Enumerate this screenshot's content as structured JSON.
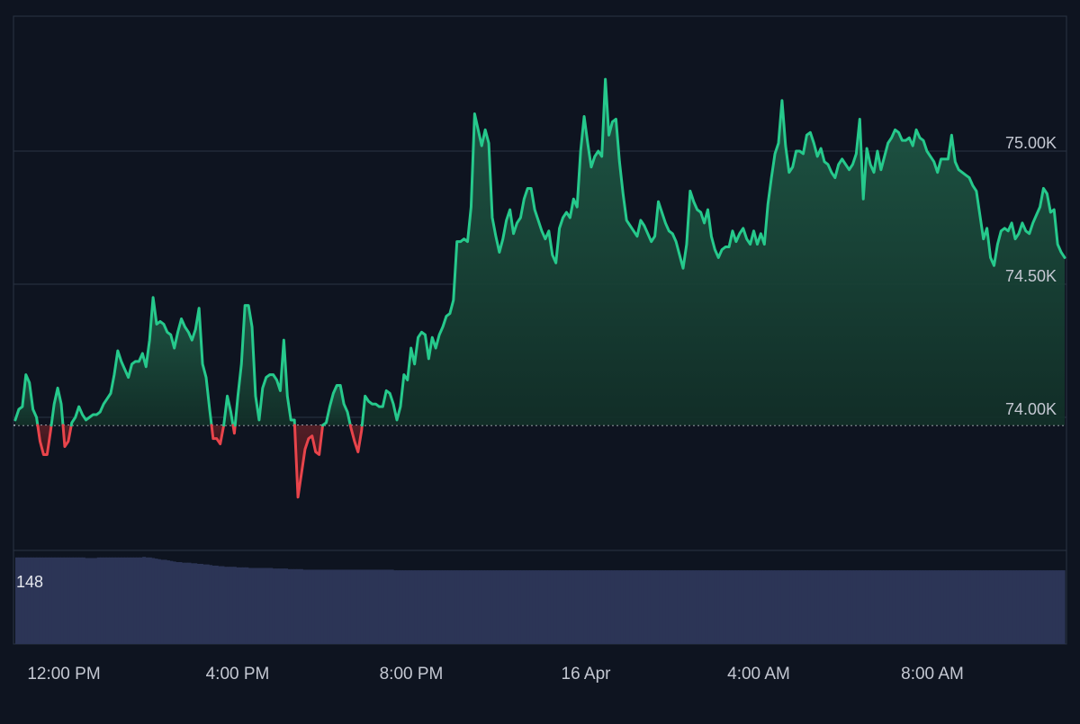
{
  "chart_data": {
    "type": "area",
    "x_ticks": [
      "12:00 PM",
      "4:00 PM",
      "8:00 PM",
      "16 Apr",
      "4:00 AM",
      "8:00 AM"
    ],
    "y_ticks": [
      "74.00K",
      "74.50K",
      "75.00K"
    ],
    "ylim": [
      73.5,
      75.5
    ],
    "baseline": 73.97,
    "grid": true,
    "colors": {
      "up": "#26c98c",
      "down": "#e8444b",
      "volume": "#2c3556",
      "grid": "#2a3343",
      "text": "#c4c8d2",
      "background": "#0e1420"
    },
    "series": [
      {
        "values": [
          73.99,
          74.03,
          74.04,
          74.16,
          74.13,
          74.03,
          74.0,
          73.91,
          73.86,
          73.86,
          73.95,
          74.05,
          74.11,
          74.05,
          73.89,
          73.91,
          73.98,
          74.0,
          74.04,
          74.01,
          73.99,
          74.0,
          74.01,
          74.01,
          74.02,
          74.05,
          74.07,
          74.09,
          74.16,
          74.25,
          74.21,
          74.18,
          74.15,
          74.2,
          74.21,
          74.21,
          74.24,
          74.19,
          74.29,
          74.45,
          74.35,
          74.36,
          74.35,
          74.32,
          74.31,
          74.26,
          74.32,
          74.37,
          74.34,
          74.32,
          74.29,
          74.33,
          74.41,
          74.2,
          74.15,
          74.03,
          73.92,
          73.92,
          73.9,
          73.97,
          74.08,
          74.02,
          73.94,
          74.08,
          74.2,
          74.42,
          74.42,
          74.34,
          74.08,
          73.99,
          74.11,
          74.15,
          74.16,
          74.16,
          74.14,
          74.1,
          74.29,
          74.08,
          73.99,
          73.99,
          73.7,
          73.79,
          73.88,
          73.92,
          73.93,
          73.87,
          73.86,
          73.97,
          73.98,
          74.04,
          74.09,
          74.12,
          74.12,
          74.05,
          74.02,
          73.96,
          73.91,
          73.87,
          73.95,
          74.08,
          74.06,
          74.05,
          74.05,
          74.04,
          74.04,
          74.1,
          74.09,
          74.05,
          73.99,
          74.04,
          74.16,
          74.14,
          74.26,
          74.2,
          74.3,
          74.32,
          74.31,
          74.22,
          74.3,
          74.26,
          74.31,
          74.34,
          74.38,
          74.39,
          74.44,
          74.66,
          74.66,
          74.67,
          74.66,
          74.79,
          75.14,
          75.08,
          75.02,
          75.08,
          75.03,
          74.75,
          74.68,
          74.62,
          74.67,
          74.74,
          74.78,
          74.69,
          74.73,
          74.75,
          74.82,
          74.86,
          74.86,
          74.78,
          74.74,
          74.7,
          74.67,
          74.7,
          74.61,
          74.58,
          74.71,
          74.75,
          74.77,
          74.75,
          74.82,
          74.79,
          75.0,
          75.13,
          75.03,
          74.94,
          74.98,
          75.0,
          74.98,
          75.27,
          75.06,
          75.11,
          75.12,
          74.96,
          74.84,
          74.74,
          74.72,
          74.7,
          74.68,
          74.74,
          74.72,
          74.69,
          74.66,
          74.68,
          74.81,
          74.77,
          74.73,
          74.7,
          74.69,
          74.66,
          74.61,
          74.56,
          74.65,
          74.85,
          74.81,
          74.78,
          74.77,
          74.73,
          74.78,
          74.68,
          74.63,
          74.6,
          74.63,
          74.64,
          74.64,
          74.7,
          74.66,
          74.69,
          74.71,
          74.67,
          74.65,
          74.7,
          74.65,
          74.69,
          74.65,
          74.8,
          74.9,
          74.99,
          75.03,
          75.19,
          75.02,
          74.92,
          74.94,
          75.0,
          75.0,
          74.99,
          75.06,
          75.07,
          75.03,
          74.98,
          75.01,
          74.96,
          74.95,
          74.92,
          74.9,
          74.95,
          74.97,
          74.95,
          74.93,
          74.95,
          74.99,
          75.12,
          74.82,
          75.01,
          74.95,
          74.92,
          75.0,
          74.93,
          74.98,
          75.03,
          75.05,
          75.08,
          75.07,
          75.04,
          75.04,
          75.05,
          75.02,
          75.08,
          75.05,
          75.04,
          75.0,
          74.98,
          74.96,
          74.92,
          74.97,
          74.97,
          74.97,
          75.06,
          74.96,
          74.93,
          74.92,
          74.91,
          74.9,
          74.87,
          74.85,
          74.76,
          74.67,
          74.71,
          74.6,
          74.57,
          74.65,
          74.7,
          74.71,
          74.7,
          74.73,
          74.67,
          74.69,
          74.73,
          74.7,
          74.69,
          74.73,
          74.76,
          74.79,
          74.86,
          74.84,
          74.77,
          74.78,
          74.65,
          74.62,
          74.6
        ]
      }
    ],
    "volume_label": "148",
    "volume": [
      148,
      148,
      148,
      148,
      148,
      148,
      148,
      148,
      148,
      148,
      148,
      148,
      148,
      148,
      148,
      148,
      148,
      148,
      148,
      148,
      148,
      148,
      148,
      147,
      147,
      147,
      147,
      148,
      148,
      148,
      148,
      148,
      148,
      148,
      148,
      148,
      148,
      148,
      148,
      148,
      148,
      148,
      149,
      148,
      148,
      147,
      146,
      145,
      144,
      144,
      143,
      142,
      141,
      140,
      140,
      139,
      139,
      139,
      138,
      138,
      137,
      137,
      136,
      136,
      135,
      134,
      134,
      133,
      133,
      132,
      132,
      132,
      132,
      131,
      131,
      131,
      131,
      130,
      130,
      130,
      130,
      130,
      130,
      130,
      130,
      129,
      129,
      129,
      129,
      129,
      128,
      128,
      128,
      128,
      128,
      127,
      127,
      127,
      127,
      127,
      127,
      127,
      127,
      127,
      127,
      127,
      127,
      127,
      127,
      127,
      127,
      127,
      127,
      127,
      127,
      127,
      127,
      127,
      127,
      127,
      127,
      127,
      127,
      127,
      127,
      126,
      126,
      126,
      126,
      126,
      126,
      126,
      126,
      126,
      126,
      126,
      126,
      126,
      126,
      126,
      126,
      126,
      126,
      126,
      126,
      126,
      126,
      126,
      126,
      126,
      126,
      126,
      126,
      126,
      126,
      126,
      126,
      126,
      126,
      126,
      126,
      126,
      126,
      126,
      126,
      126,
      126,
      126,
      126,
      126,
      126,
      126,
      126,
      126,
      126,
      126,
      126,
      126,
      126,
      126,
      126,
      126,
      126,
      126,
      126,
      126,
      126,
      126,
      126,
      126,
      126,
      126,
      126,
      126,
      126,
      126,
      126,
      126,
      126,
      126,
      126,
      126,
      126,
      126,
      126,
      126,
      126,
      126,
      126,
      126,
      126,
      126,
      126,
      126,
      126,
      126,
      126,
      126,
      126,
      126,
      126,
      126,
      126,
      126,
      126,
      126,
      126,
      126,
      126,
      126,
      126,
      126,
      126,
      126,
      126,
      126,
      126,
      126,
      126,
      126,
      126,
      126,
      126,
      126,
      126,
      126,
      126,
      126,
      126,
      126,
      126,
      126,
      126,
      126,
      126,
      126,
      126,
      126,
      126,
      126,
      126,
      126,
      126,
      126,
      126,
      126,
      126,
      126,
      126,
      126,
      126,
      126,
      126,
      126,
      126,
      126,
      126,
      126,
      126,
      126,
      126,
      126,
      126,
      126,
      126,
      126,
      126,
      126,
      126,
      126,
      126,
      126,
      126,
      126,
      126,
      126,
      126,
      126,
      126,
      126,
      126,
      126,
      126,
      126,
      126,
      126,
      126,
      126,
      126,
      126,
      126,
      126,
      126,
      126,
      126,
      126,
      126,
      126,
      126,
      126,
      126,
      126,
      126,
      126,
      126,
      126,
      126,
      126,
      126,
      126,
      126,
      126,
      126,
      126,
      126,
      126,
      126,
      126,
      126,
      126,
      126,
      126,
      126,
      126,
      126,
      126,
      126
    ]
  }
}
